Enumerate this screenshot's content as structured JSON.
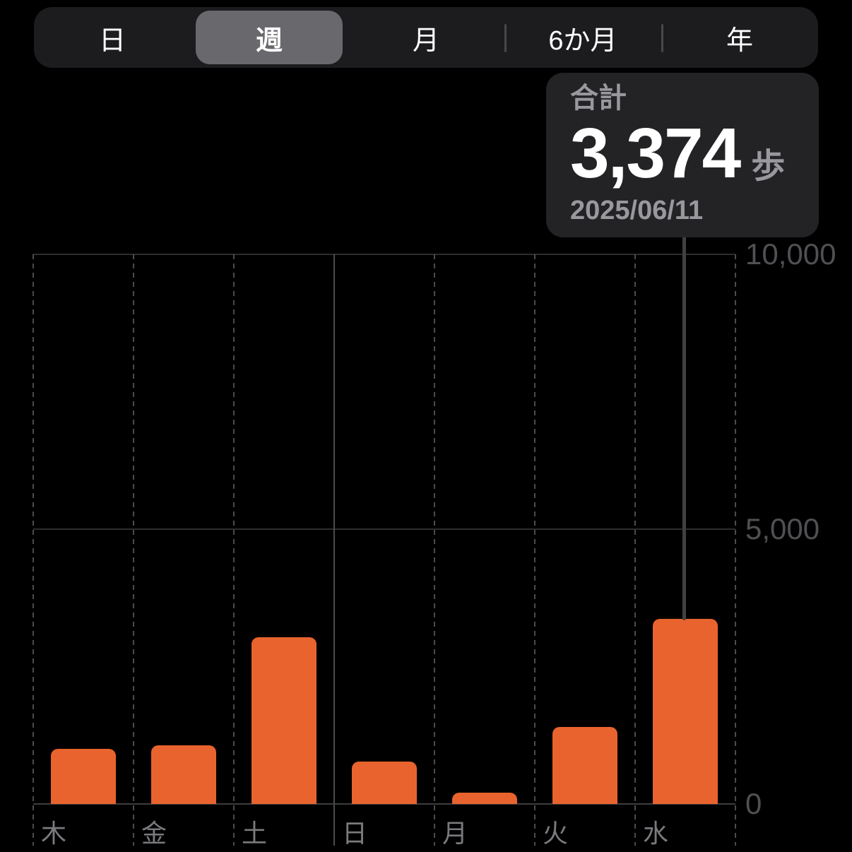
{
  "segmented_control": {
    "items": [
      {
        "label": "日",
        "selected": false
      },
      {
        "label": "週",
        "selected": true
      },
      {
        "label": "月",
        "selected": false
      },
      {
        "label": "6か月",
        "selected": false
      },
      {
        "label": "年",
        "selected": false
      }
    ]
  },
  "tooltip": {
    "title": "合計",
    "value": "3,374",
    "unit": "歩",
    "date": "2025/06/11"
  },
  "chart_data": {
    "type": "bar",
    "categories": [
      "木",
      "金",
      "土",
      "日",
      "月",
      "火",
      "水"
    ],
    "values": [
      1000,
      1070,
      3030,
      770,
      205,
      1400,
      3374
    ],
    "selected_index": 6,
    "selected_value_exact": 3374,
    "yticks": [
      {
        "value": 0,
        "label": "0"
      },
      {
        "value": 5000,
        "label": "5,000"
      },
      {
        "value": 10000,
        "label": "10,000"
      }
    ],
    "ylim": [
      0,
      10000
    ],
    "grid": {
      "horizontal": "solid",
      "vertical": "dashed",
      "solid_vertical_divider_boundary_index": 3
    },
    "legend_position": "none",
    "bar_color": "#E9632E"
  },
  "colors": {
    "background": "#000000",
    "bar": "#E9632E",
    "segmented_bg": "#1C1C1E",
    "segment_selected_bg": "#68686D",
    "separator": "#48484A",
    "tooltip_bg": "#232326",
    "primary_text": "#FFFFFF",
    "secondary_text": "#98989D",
    "axis_tick_text": "#505054",
    "day_label_text": "#7A7A7E",
    "gridline_horizontal": "#2E2E30",
    "baseline": "#3E3E40",
    "gridline_vertical": "#4C4C4E",
    "connector": "#414144"
  }
}
